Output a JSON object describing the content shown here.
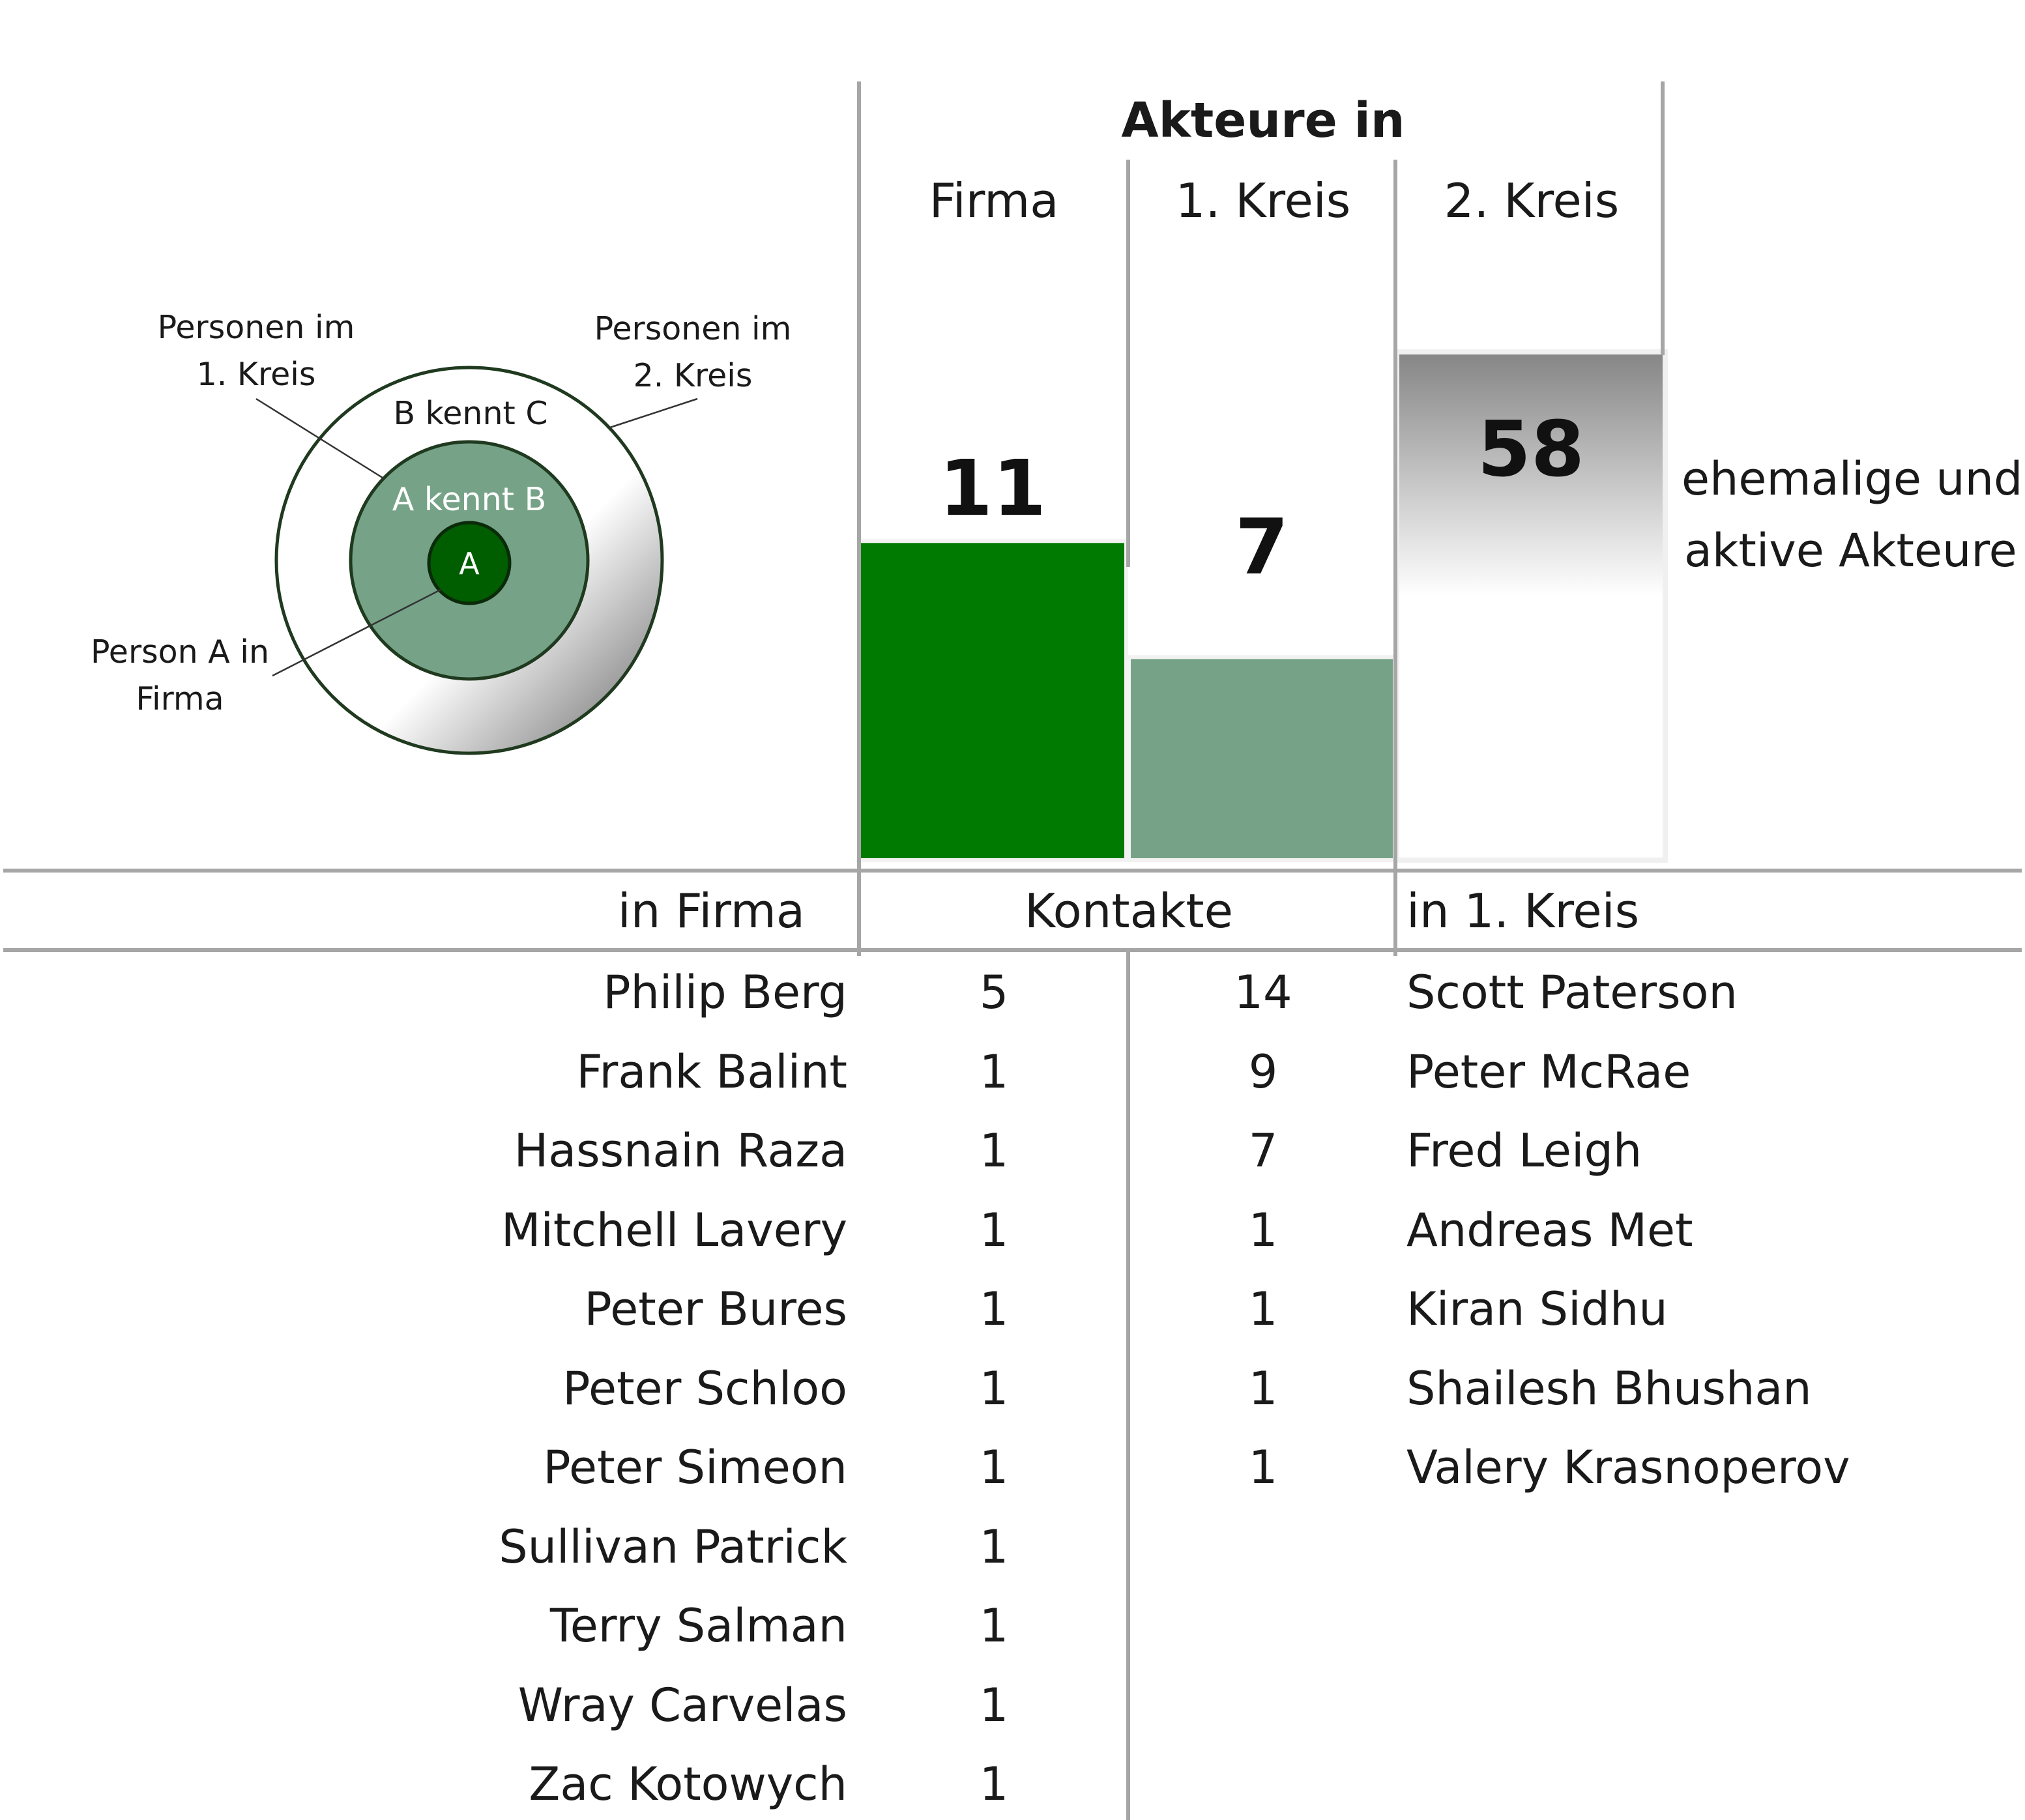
{
  "diagram": {
    "label_first_circle": [
      "Personen im",
      "1. Kreis"
    ],
    "label_second_circle": [
      "Personen im",
      "2. Kreis"
    ],
    "label_person_a": [
      "Person A in",
      "Firma"
    ],
    "ring_outer_text": "B kennt C",
    "ring_middle_text": "A kennt B",
    "ring_inner_text": "A"
  },
  "chart_data": {
    "type": "bar",
    "title": "Akteure in",
    "categories": [
      "Firma",
      "1. Kreis",
      "2. Kreis"
    ],
    "values": [
      11,
      7,
      58
    ],
    "colors": [
      "#007a00",
      "#76a387",
      "gradient-grey"
    ],
    "side_note": [
      "ehemalige und",
      "aktive Akteure"
    ]
  },
  "table": {
    "headers": {
      "in_firma": "in Firma",
      "kontakte": "Kontakte",
      "in_kreis": "in 1. Kreis"
    },
    "firma_people": [
      {
        "name": "Philip Berg",
        "contacts": "5"
      },
      {
        "name": "Frank Balint",
        "contacts": "1"
      },
      {
        "name": "Hassnain Raza",
        "contacts": "1"
      },
      {
        "name": "Mitchell Lavery",
        "contacts": "1"
      },
      {
        "name": "Peter Bures",
        "contacts": "1"
      },
      {
        "name": "Peter Schloo",
        "contacts": "1"
      },
      {
        "name": "Peter Simeon",
        "contacts": "1"
      },
      {
        "name": "Sullivan Patrick",
        "contacts": "1"
      },
      {
        "name": "Terry Salman",
        "contacts": "1"
      },
      {
        "name": "Wray Carvelas",
        "contacts": "1"
      },
      {
        "name": "Zac Kotowych",
        "contacts": "1"
      }
    ],
    "kreis_people": [
      {
        "name": "Scott Paterson",
        "contacts": "14"
      },
      {
        "name": "Peter McRae",
        "contacts": "9"
      },
      {
        "name": "Fred Leigh",
        "contacts": "7"
      },
      {
        "name": "Andreas Met",
        "contacts": "1"
      },
      {
        "name": "Kiran Sidhu",
        "contacts": "1"
      },
      {
        "name": "Shailesh Bhushan",
        "contacts": "1"
      },
      {
        "name": "Valery Krasnoperov",
        "contacts": "1"
      }
    ]
  }
}
